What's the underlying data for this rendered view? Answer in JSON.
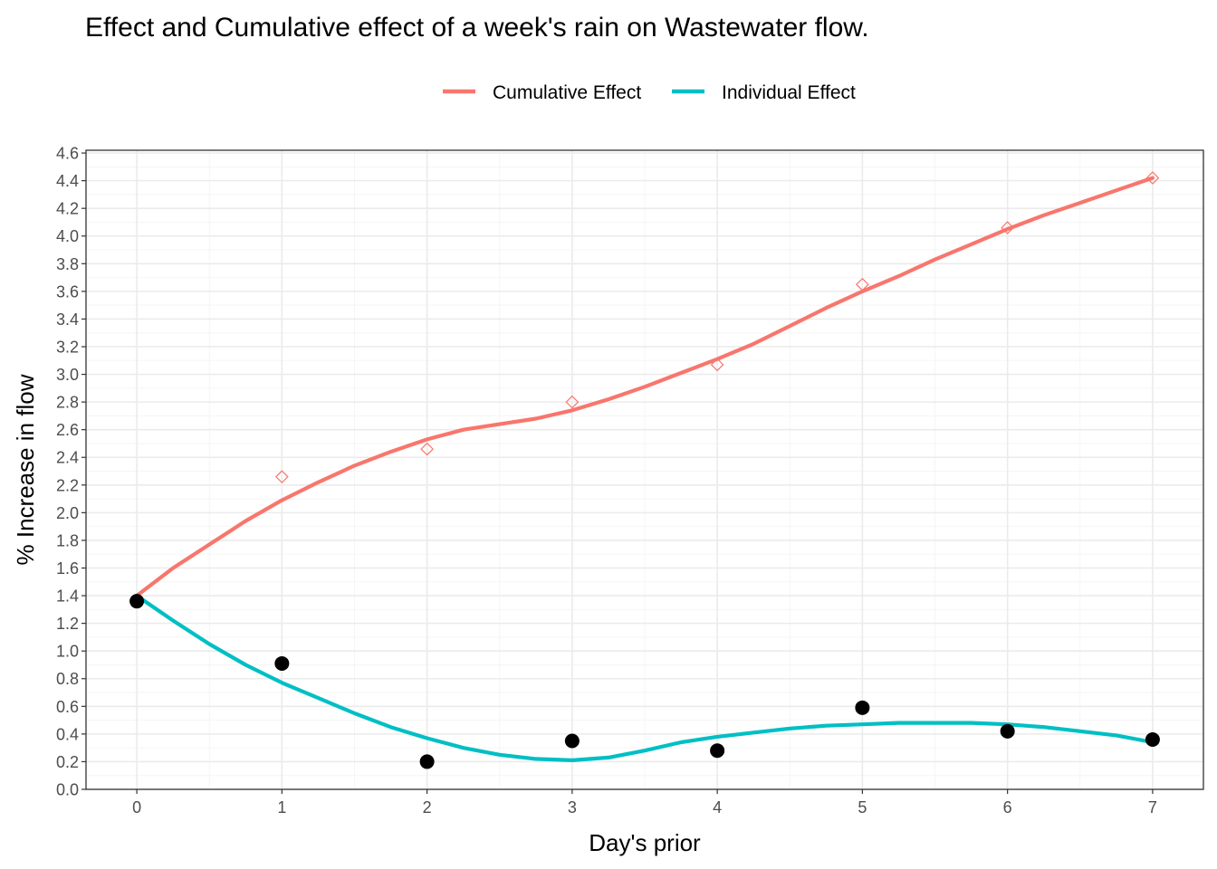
{
  "chart_data": {
    "type": "line",
    "title": "Effect and Cumulative effect of a week's rain on Wastewater flow.",
    "xlabel": "Day's prior",
    "ylabel": "% Increase in flow",
    "xlim": [
      -0.35,
      7.35
    ],
    "ylim": [
      -0.0,
      4.62
    ],
    "x_ticks": [
      0,
      1,
      2,
      3,
      4,
      5,
      6,
      7
    ],
    "x_tick_labels": [
      "0",
      "1",
      "2",
      "3",
      "4",
      "5",
      "6",
      "7"
    ],
    "y_ticks": [
      0.0,
      0.2,
      0.4,
      0.6,
      0.8,
      1.0,
      1.2,
      1.4,
      1.6,
      1.8,
      2.0,
      2.2,
      2.4,
      2.6,
      2.8,
      3.0,
      3.2,
      3.4,
      3.6,
      3.8,
      4.0,
      4.2,
      4.4,
      4.6
    ],
    "y_tick_labels": [
      "0.0",
      "0.2",
      "0.4",
      "0.6",
      "0.8",
      "1.0",
      "1.2",
      "1.4",
      "1.6",
      "1.8",
      "2.0",
      "2.2",
      "2.4",
      "2.6",
      "2.8",
      "3.0",
      "3.2",
      "3.4",
      "3.6",
      "3.8",
      "4.0",
      "4.2",
      "4.4",
      "4.6"
    ],
    "grid": true,
    "legend_position": "top",
    "series": [
      {
        "name": "Cumulative Effect",
        "color": "#F8766D",
        "points": [
          {
            "x": 0,
            "y": 1.36
          },
          {
            "x": 1,
            "y": 2.26
          },
          {
            "x": 2,
            "y": 2.46
          },
          {
            "x": 3,
            "y": 2.8
          },
          {
            "x": 4,
            "y": 3.07
          },
          {
            "x": 5,
            "y": 3.65
          },
          {
            "x": 6,
            "y": 4.06
          },
          {
            "x": 7,
            "y": 4.42
          }
        ],
        "smooth": [
          {
            "x": 0,
            "y": 1.4
          },
          {
            "x": 0.25,
            "y": 1.6
          },
          {
            "x": 0.5,
            "y": 1.77
          },
          {
            "x": 0.75,
            "y": 1.94
          },
          {
            "x": 1,
            "y": 2.09
          },
          {
            "x": 1.25,
            "y": 2.22
          },
          {
            "x": 1.5,
            "y": 2.34
          },
          {
            "x": 1.75,
            "y": 2.44
          },
          {
            "x": 2,
            "y": 2.53
          },
          {
            "x": 2.25,
            "y": 2.6
          },
          {
            "x": 2.5,
            "y": 2.64
          },
          {
            "x": 2.75,
            "y": 2.68
          },
          {
            "x": 3,
            "y": 2.74
          },
          {
            "x": 3.25,
            "y": 2.82
          },
          {
            "x": 3.5,
            "y": 2.91
          },
          {
            "x": 3.75,
            "y": 3.01
          },
          {
            "x": 4,
            "y": 3.11
          },
          {
            "x": 4.25,
            "y": 3.22
          },
          {
            "x": 4.5,
            "y": 3.35
          },
          {
            "x": 4.75,
            "y": 3.48
          },
          {
            "x": 5,
            "y": 3.6
          },
          {
            "x": 5.25,
            "y": 3.71
          },
          {
            "x": 5.5,
            "y": 3.83
          },
          {
            "x": 5.75,
            "y": 3.94
          },
          {
            "x": 6,
            "y": 4.05
          },
          {
            "x": 6.25,
            "y": 4.15
          },
          {
            "x": 6.5,
            "y": 4.24
          },
          {
            "x": 6.75,
            "y": 4.33
          },
          {
            "x": 7,
            "y": 4.42
          }
        ]
      },
      {
        "name": "Individual Effect",
        "color": "#00BFC4",
        "points": [
          {
            "x": 0,
            "y": 1.36
          },
          {
            "x": 1,
            "y": 0.91
          },
          {
            "x": 2,
            "y": 0.2
          },
          {
            "x": 3,
            "y": 0.35
          },
          {
            "x": 4,
            "y": 0.28
          },
          {
            "x": 5,
            "y": 0.59
          },
          {
            "x": 6,
            "y": 0.42
          },
          {
            "x": 7,
            "y": 0.36
          }
        ],
        "smooth": [
          {
            "x": 0,
            "y": 1.4
          },
          {
            "x": 0.25,
            "y": 1.22
          },
          {
            "x": 0.5,
            "y": 1.05
          },
          {
            "x": 0.75,
            "y": 0.9
          },
          {
            "x": 1,
            "y": 0.77
          },
          {
            "x": 1.25,
            "y": 0.66
          },
          {
            "x": 1.5,
            "y": 0.55
          },
          {
            "x": 1.75,
            "y": 0.45
          },
          {
            "x": 2,
            "y": 0.37
          },
          {
            "x": 2.25,
            "y": 0.3
          },
          {
            "x": 2.5,
            "y": 0.25
          },
          {
            "x": 2.75,
            "y": 0.22
          },
          {
            "x": 3,
            "y": 0.21
          },
          {
            "x": 3.25,
            "y": 0.23
          },
          {
            "x": 3.5,
            "y": 0.28
          },
          {
            "x": 3.75,
            "y": 0.34
          },
          {
            "x": 4,
            "y": 0.38
          },
          {
            "x": 4.25,
            "y": 0.41
          },
          {
            "x": 4.5,
            "y": 0.44
          },
          {
            "x": 4.75,
            "y": 0.46
          },
          {
            "x": 5,
            "y": 0.47
          },
          {
            "x": 5.25,
            "y": 0.48
          },
          {
            "x": 5.5,
            "y": 0.48
          },
          {
            "x": 5.75,
            "y": 0.48
          },
          {
            "x": 6,
            "y": 0.47
          },
          {
            "x": 6.25,
            "y": 0.45
          },
          {
            "x": 6.5,
            "y": 0.42
          },
          {
            "x": 6.75,
            "y": 0.39
          },
          {
            "x": 7,
            "y": 0.34
          }
        ]
      }
    ],
    "point_styles": {
      "Cumulative Effect": {
        "shape": "diamond-open",
        "color": "#F8766D"
      },
      "Individual Effect": {
        "shape": "circle-filled",
        "color": "#000000"
      }
    },
    "colors": {
      "panel_background": "#FFFFFF",
      "grid_major": "#EBEBEB",
      "grid_minor": "#F5F5F5",
      "panel_border": "#333333"
    }
  }
}
